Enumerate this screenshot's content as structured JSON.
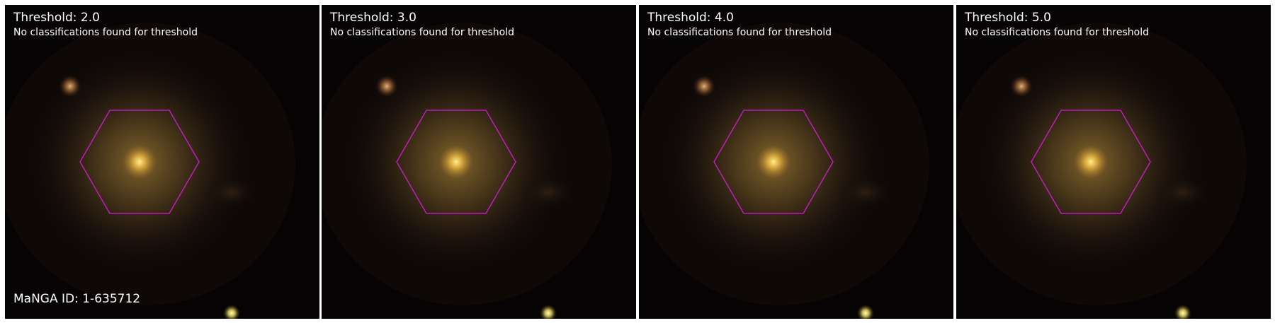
{
  "panels": [
    {
      "title": "Threshold: 2.0",
      "message": "No classifications found for threshold"
    },
    {
      "title": "Threshold: 3.0",
      "message": "No classifications found for threshold"
    },
    {
      "title": "Threshold: 4.0",
      "message": "No classifications found for threshold"
    },
    {
      "title": "Threshold: 5.0",
      "message": "No classifications found for threshold"
    }
  ],
  "manga_id_label": "MaNGA ID: 1-635712",
  "colors": {
    "hexagon_outline": "#d21ad2",
    "label_text": "#ffffff",
    "sky_background": "#050303",
    "galaxy_core": "#fff08a",
    "galaxy_halo": "#8a6a30"
  },
  "overlay_shape": "hexagon"
}
